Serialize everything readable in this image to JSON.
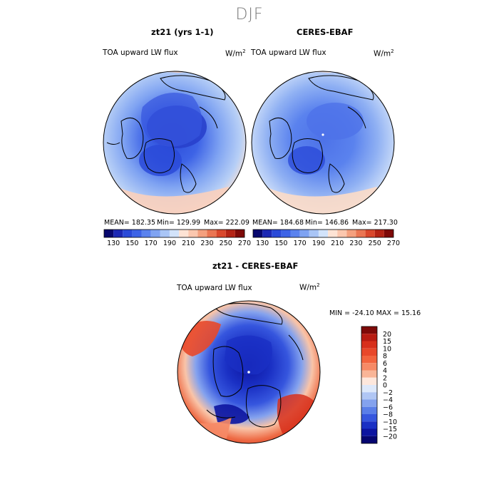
{
  "figure": {
    "title": "DJF",
    "panels": [
      {
        "title": "zt21 (yrs 1-1)",
        "variable": "TOA upward LW flux",
        "units_label": "W/m",
        "units_exp": "2",
        "mean_text": "MEAN= 182.35",
        "min_text": "Min= 129.99",
        "max_text": "Max= 222.09"
      },
      {
        "title": "CERES-EBAF",
        "variable": "TOA upward LW flux",
        "units_label": "W/m",
        "units_exp": "2",
        "mean_text": "MEAN= 184.68",
        "min_text": "Min= 146.86",
        "max_text": "Max= 217.30"
      },
      {
        "title": "zt21 - CERES-EBAF",
        "variable": "TOA upward LW flux",
        "units_label": "W/m",
        "units_exp": "2",
        "minmax_text": "MIN = -24.10 MAX =  15.16"
      }
    ]
  },
  "chart_data": [
    {
      "type": "heatmap",
      "projection": "north-polar-stereographic",
      "title": "zt21 (yrs 1-1)",
      "variable": "TOA upward LW flux",
      "units": "W/m^2",
      "mean": 182.35,
      "min": 129.99,
      "max": 222.09,
      "colorbar_levels": [
        130,
        140,
        150,
        160,
        170,
        180,
        190,
        200,
        210,
        220,
        230,
        240,
        250,
        260,
        270
      ],
      "colorbar_tick_labels": [
        "130",
        "150",
        "170",
        "190",
        "210",
        "230",
        "250",
        "270"
      ],
      "colorbar_colors": [
        "#08086e",
        "#1c28b4",
        "#2a4ad8",
        "#3d63e6",
        "#5a82ee",
        "#7fa3f2",
        "#a9c5f6",
        "#d2e3fa",
        "#fde3d4",
        "#fbc7ae",
        "#f4a07e",
        "#ea7653",
        "#d9482c",
        "#b42415",
        "#7e0a08"
      ]
    },
    {
      "type": "heatmap",
      "projection": "north-polar-stereographic",
      "title": "CERES-EBAF",
      "variable": "TOA upward LW flux",
      "units": "W/m^2",
      "mean": 184.68,
      "min": 146.86,
      "max": 217.3,
      "colorbar_levels": [
        130,
        140,
        150,
        160,
        170,
        180,
        190,
        200,
        210,
        220,
        230,
        240,
        250,
        260,
        270
      ],
      "colorbar_tick_labels": [
        "130",
        "150",
        "170",
        "190",
        "210",
        "230",
        "250",
        "270"
      ],
      "colorbar_colors": [
        "#08086e",
        "#1c28b4",
        "#2a4ad8",
        "#3d63e6",
        "#5a82ee",
        "#7fa3f2",
        "#a9c5f6",
        "#d2e3fa",
        "#fde3d4",
        "#fbc7ae",
        "#f4a07e",
        "#ea7653",
        "#d9482c",
        "#b42415",
        "#7e0a08"
      ]
    },
    {
      "type": "heatmap",
      "projection": "north-polar-stereographic",
      "title": "zt21 - CERES-EBAF",
      "variable": "TOA upward LW flux",
      "units": "W/m^2",
      "min": -24.1,
      "max": 15.16,
      "colorbar_orientation": "vertical",
      "colorbar_tick_labels": [
        "20",
        "15",
        "10",
        "8",
        "6",
        "4",
        "2",
        "0",
        "-2",
        "-4",
        "-6",
        "-8",
        "-10",
        "-15",
        "-20"
      ],
      "colorbar_colors": [
        "#7e0a08",
        "#b81c12",
        "#d7301c",
        "#e8482a",
        "#f2643e",
        "#f68a66",
        "#f9b597",
        "#fde7dc",
        "#dde8fa",
        "#b0c6f4",
        "#84a2ee",
        "#5a7ee8",
        "#3656de",
        "#1a30c4",
        "#0c14a0",
        "#050570"
      ]
    }
  ]
}
